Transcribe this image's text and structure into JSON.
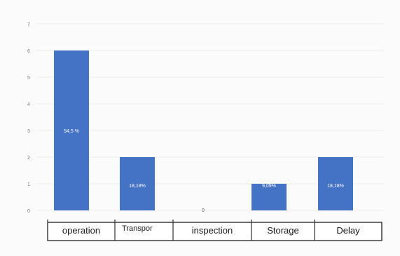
{
  "chart_data": {
    "type": "bar",
    "categories": [
      "operation",
      "Transpor",
      "inspection",
      "Storage",
      "Delay"
    ],
    "values": [
      6,
      2,
      0,
      1,
      2
    ],
    "data_labels": [
      "54,5 %",
      "18,18%",
      "0",
      "9,09%",
      "18,18%"
    ],
    "ylim": [
      0,
      7
    ],
    "y_ticks": [
      "0",
      "1",
      "2",
      "3",
      "4",
      "5",
      "6",
      "7"
    ],
    "grid": true,
    "bar_color": "#4472c4",
    "data_label_color": "#ffffff",
    "zero_label_color": "#595959"
  }
}
